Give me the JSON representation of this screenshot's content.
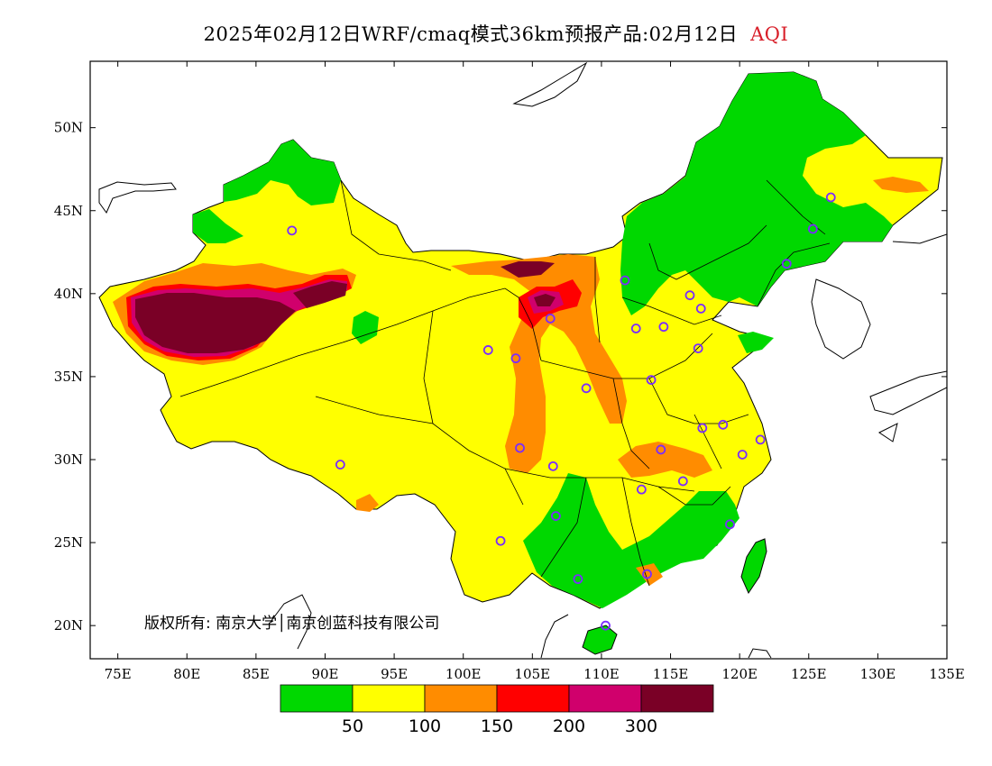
{
  "title": {
    "main": "2025年02月12日WRF/cmaq模式36km预报产品:02月12日",
    "variable": "AQI",
    "variable_color": "#d81e28"
  },
  "axes": {
    "x_ticks": [
      "75E",
      "80E",
      "85E",
      "90E",
      "95E",
      "100E",
      "105E",
      "110E",
      "115E",
      "120E",
      "125E",
      "130E",
      "135E"
    ],
    "y_ticks": [
      "50N",
      "45N",
      "40N",
      "35N",
      "30N",
      "25N",
      "20N"
    ]
  },
  "copyright": "版权所有: 南京大学│南京创蓝科技有限公司",
  "legend": {
    "colors": [
      "#00d800",
      "#ffff00",
      "#ff8c00",
      "#ff0000",
      "#d0006c",
      "#7a0026"
    ],
    "labels": [
      "50",
      "100",
      "150",
      "200",
      "300"
    ]
  },
  "palette": {
    "good": "#00d800",
    "moderate": "#ffff00",
    "usg": "#ff8c00",
    "unhealthy": "#ff0000",
    "very_unhealthy": "#d0006c",
    "hazardous": "#7a0026",
    "city_marker": "#7b2cff"
  },
  "city_markers": [
    {
      "lon": 87.6,
      "lat": 43.8
    },
    {
      "lon": 101.8,
      "lat": 36.6
    },
    {
      "lon": 103.8,
      "lat": 36.1
    },
    {
      "lon": 106.3,
      "lat": 38.5
    },
    {
      "lon": 111.7,
      "lat": 40.8
    },
    {
      "lon": 112.5,
      "lat": 37.9
    },
    {
      "lon": 114.5,
      "lat": 38.0
    },
    {
      "lon": 116.4,
      "lat": 39.9
    },
    {
      "lon": 117.2,
      "lat": 39.1
    },
    {
      "lon": 123.4,
      "lat": 41.8
    },
    {
      "lon": 125.3,
      "lat": 43.9
    },
    {
      "lon": 126.6,
      "lat": 45.8
    },
    {
      "lon": 117.0,
      "lat": 36.7
    },
    {
      "lon": 113.6,
      "lat": 34.8
    },
    {
      "lon": 108.9,
      "lat": 34.3
    },
    {
      "lon": 117.3,
      "lat": 31.9
    },
    {
      "lon": 118.8,
      "lat": 32.1
    },
    {
      "lon": 121.5,
      "lat": 31.2
    },
    {
      "lon": 120.2,
      "lat": 30.3
    },
    {
      "lon": 114.3,
      "lat": 30.6
    },
    {
      "lon": 104.1,
      "lat": 30.7
    },
    {
      "lon": 106.5,
      "lat": 29.6
    },
    {
      "lon": 112.9,
      "lat": 28.2
    },
    {
      "lon": 115.9,
      "lat": 28.7
    },
    {
      "lon": 119.3,
      "lat": 26.1
    },
    {
      "lon": 106.7,
      "lat": 26.6
    },
    {
      "lon": 102.7,
      "lat": 25.1
    },
    {
      "lon": 108.3,
      "lat": 22.8
    },
    {
      "lon": 113.3,
      "lat": 23.1
    },
    {
      "lon": 110.3,
      "lat": 20.0
    },
    {
      "lon": 91.1,
      "lat": 29.7
    }
  ]
}
